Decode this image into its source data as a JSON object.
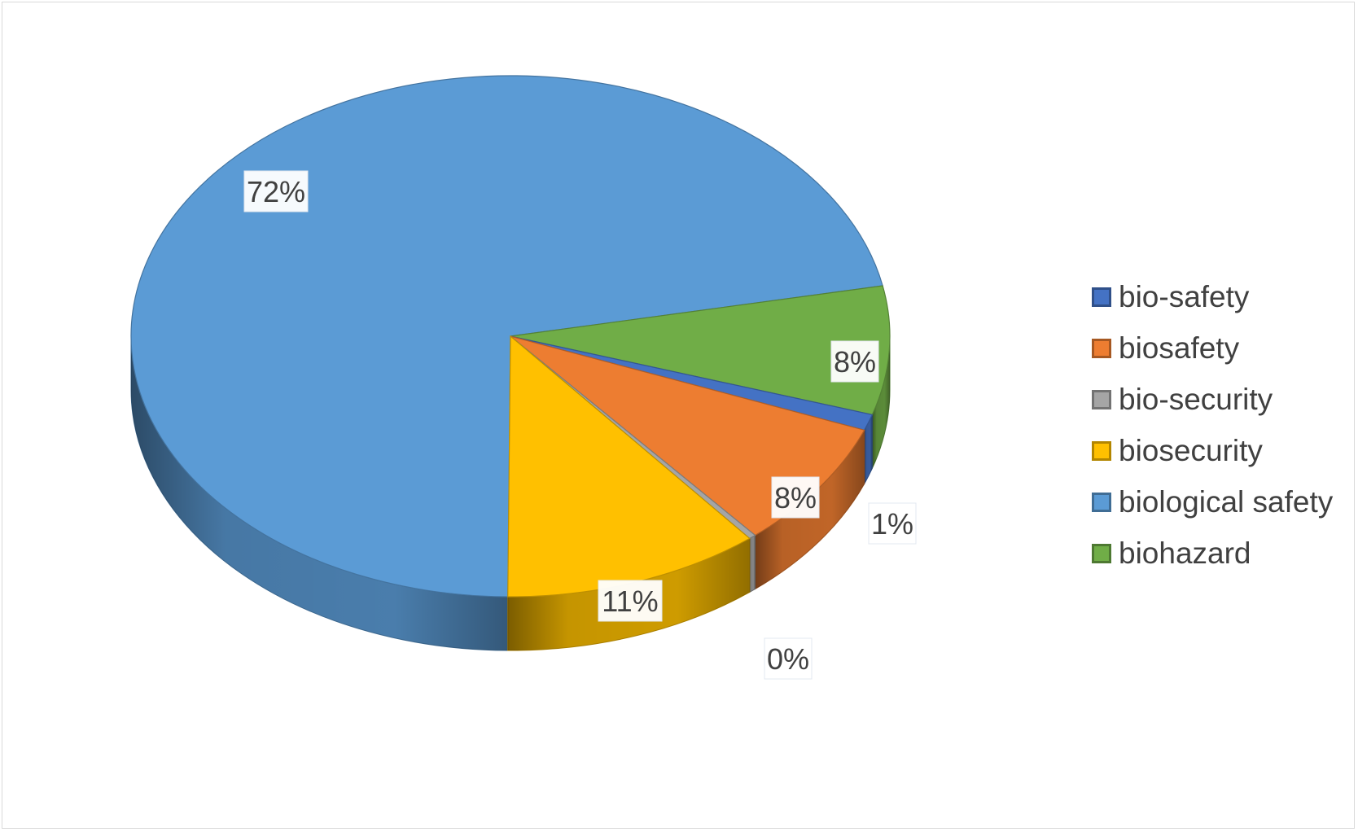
{
  "chart_data": {
    "type": "pie",
    "title": "",
    "categories": [
      "bio-safety",
      "biosafety",
      "bio-security",
      "biosecurity",
      "biological safety",
      "biohazard"
    ],
    "values": [
      72,
      8,
      0,
      11,
      1,
      8
    ],
    "labels": [
      "72%",
      "8%",
      "0%",
      "11%",
      "1%",
      "8%"
    ],
    "colors": [
      "#4472C4",
      "#ED7D31",
      "#A5A5A5",
      "#FFC000",
      "#5B9BD5",
      "#70AD47"
    ],
    "legend_colors": [
      "#4472C4",
      "#ED7D31",
      "#A5A5A5",
      "#FFC000",
      "#5B9BD5",
      "#70AD47"
    ],
    "pie_colors": [
      "#5B9BD5",
      "#70AD47",
      "#4472C4",
      "#ED7D31",
      "#FFC000",
      "#A5A5A5"
    ],
    "legend_position": "right",
    "style": "3d"
  }
}
